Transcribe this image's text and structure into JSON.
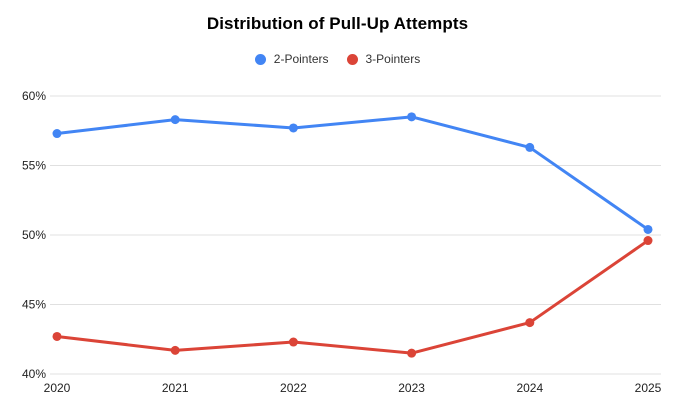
{
  "chart": {
    "title": "Distribution of Pull-Up Attempts"
  },
  "chart_data": {
    "type": "line",
    "title": "Distribution of Pull-Up Attempts",
    "categories": [
      "2020",
      "2021",
      "2022",
      "2023",
      "2024",
      "2025"
    ],
    "series": [
      {
        "name": "2-Pointers",
        "color": "#4285F4",
        "values": [
          57.3,
          58.3,
          57.7,
          58.5,
          56.3,
          50.4
        ]
      },
      {
        "name": "3-Pointers",
        "color": "#DB4437",
        "values": [
          42.7,
          41.7,
          42.3,
          41.5,
          43.7,
          49.6
        ]
      }
    ],
    "xlabel": "",
    "ylabel": "",
    "ylim": [
      40,
      60
    ],
    "y_ticks": [
      60,
      55,
      50,
      45,
      40
    ],
    "y_tick_labels": [
      "60%",
      "55%",
      "50%",
      "45%",
      "40%"
    ],
    "grid": true,
    "legend_position": "top",
    "colors": {
      "background": "#ffffff",
      "gridline": "#e0e0e0",
      "axis_text": "#222222",
      "legend_text": "#333333",
      "title_text": "#000000"
    }
  }
}
